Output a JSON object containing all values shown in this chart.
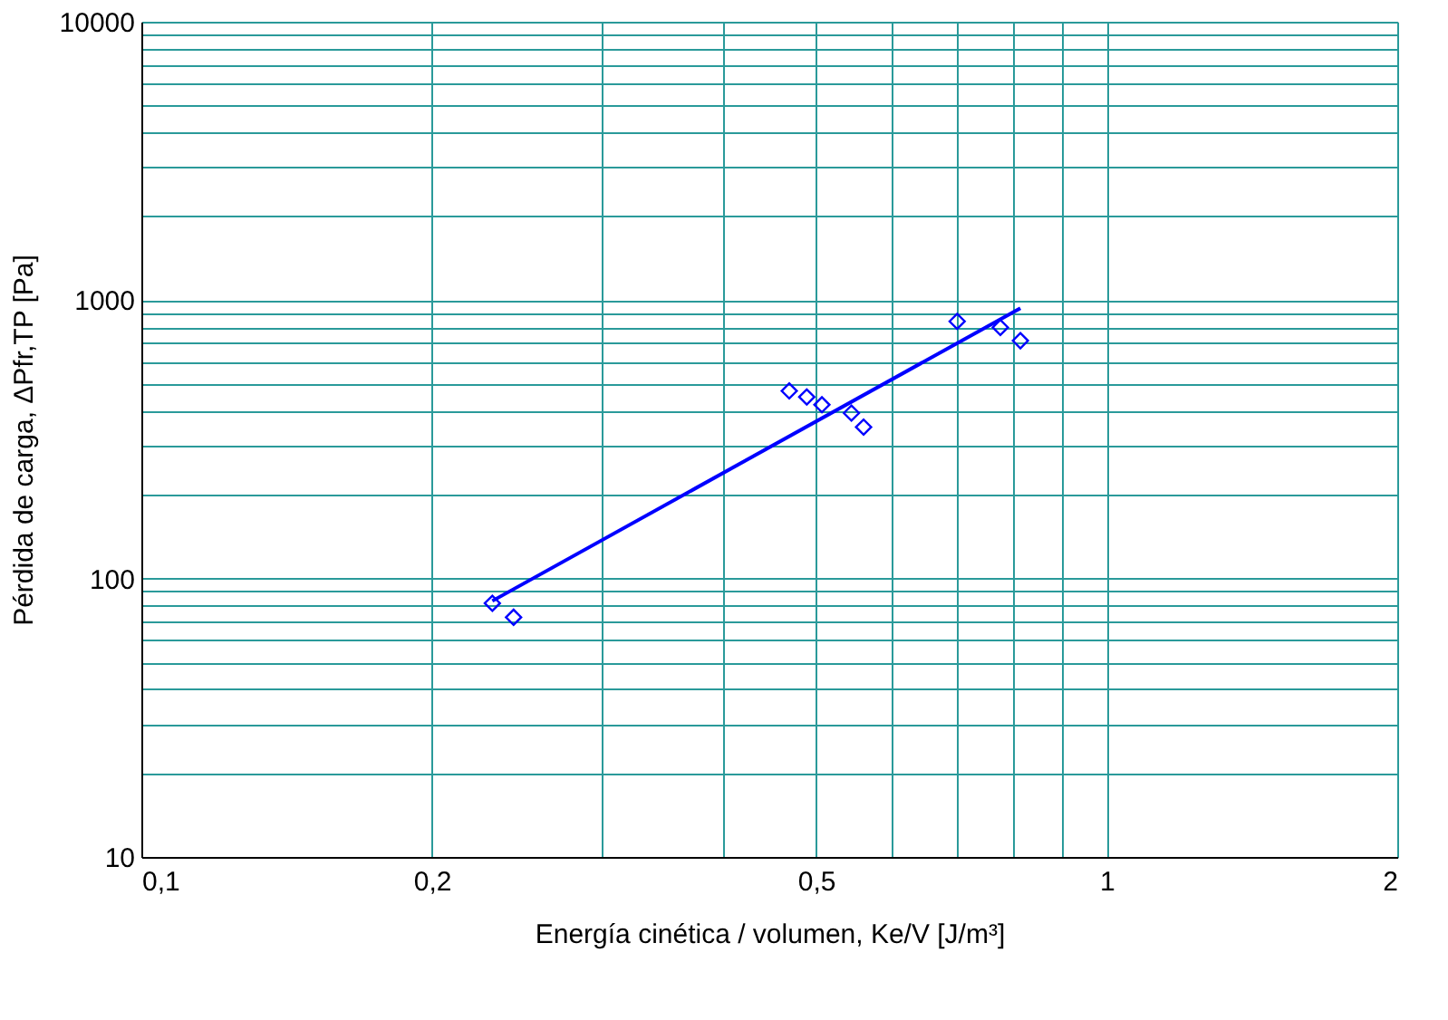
{
  "chart_data": {
    "type": "scatter",
    "xlabel": "Energía cinética / volumen, Ke/V [J/m³]",
    "ylabel": "Pérdida de carga, ΔPfr,TP [Pa]",
    "log": "xy",
    "grid": true,
    "marker": "diamond",
    "xlim": [
      0.1,
      2
    ],
    "ylim": [
      10,
      10000
    ],
    "xticks": [
      {
        "value": 0.1,
        "label": "0,1"
      },
      {
        "value": 0.2,
        "label": "0,2"
      },
      {
        "value": 0.3,
        "label": null
      },
      {
        "value": 0.4,
        "label": null
      },
      {
        "value": 0.5,
        "label": "0,5"
      },
      {
        "value": 0.6,
        "label": null
      },
      {
        "value": 0.7,
        "label": null
      },
      {
        "value": 0.8,
        "label": null
      },
      {
        "value": 0.9,
        "label": null
      },
      1,
      2
    ],
    "yticks": [
      10,
      {
        "value": 20,
        "label": null
      },
      {
        "value": 30,
        "label": null
      },
      {
        "value": 40,
        "label": null
      },
      {
        "value": 50,
        "label": null
      },
      {
        "value": 60,
        "label": null
      },
      {
        "value": 70,
        "label": null
      },
      {
        "value": 80,
        "label": null
      },
      {
        "value": 90,
        "label": null
      },
      100,
      {
        "value": 200,
        "label": null
      },
      {
        "value": 300,
        "label": null
      },
      {
        "value": 400,
        "label": null
      },
      {
        "value": 500,
        "label": null
      },
      {
        "value": 600,
        "label": null
      },
      {
        "value": 700,
        "label": null
      },
      {
        "value": 800,
        "label": null
      },
      {
        "value": 900,
        "label": null
      },
      1000,
      {
        "value": 2000,
        "label": null
      },
      {
        "value": 3000,
        "label": null
      },
      {
        "value": 4000,
        "label": null
      },
      {
        "value": 5000,
        "label": null
      },
      {
        "value": 6000,
        "label": null
      },
      {
        "value": 7000,
        "label": null
      },
      {
        "value": 8000,
        "label": null
      },
      {
        "value": 9000,
        "label": null
      },
      10000
    ],
    "series": [
      {
        "type": "scatter",
        "color": "#0000ff",
        "x": [
          0.231,
          0.243,
          0.469,
          0.489,
          0.507,
          0.544,
          0.56,
          0.7,
          0.776,
          0.814
        ],
        "values": [
          81.5,
          72.6,
          472,
          449,
          421,
          393,
          350,
          839,
          798,
          715
        ]
      },
      {
        "type": "line",
        "color": "#0000ff",
        "marker": "none",
        "line_style": "solid",
        "x": [
          0.231,
          0.814
        ],
        "values": [
          83.1,
          936
        ]
      }
    ]
  }
}
